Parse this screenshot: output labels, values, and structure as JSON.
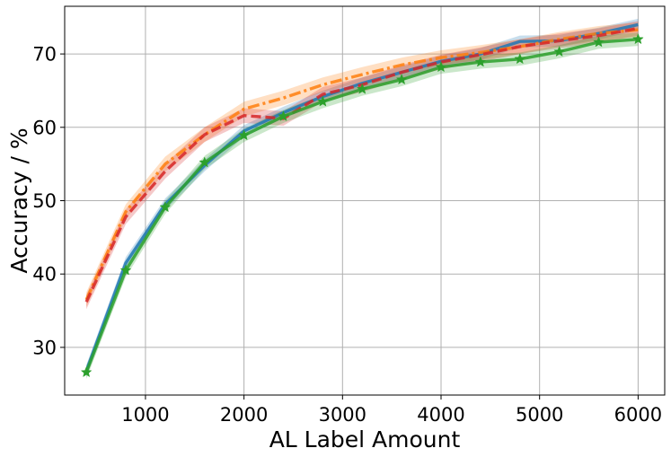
{
  "chart_data": {
    "type": "line",
    "title": "",
    "xlabel": "AL Label Amount",
    "ylabel": "Accuracy / %",
    "xlim": [
      180,
      6270
    ],
    "ylim": [
      23.5,
      76.5
    ],
    "xticks": [
      1000,
      2000,
      3000,
      4000,
      5000,
      6000
    ],
    "yticks": [
      30,
      40,
      50,
      60,
      70
    ],
    "grid": true,
    "legend": "none",
    "series": [
      {
        "color": "#1f77b4",
        "style": "solid",
        "marker": "none",
        "x": [
          400,
          800,
          1200,
          1600,
          2000,
          2400,
          2800,
          3200,
          3600,
          4000,
          4400,
          4800,
          5200,
          5600,
          6000
        ],
        "values": [
          26.8,
          41.5,
          49.5,
          54.8,
          59.5,
          62.0,
          64.2,
          66.0,
          67.5,
          69.0,
          70.0,
          71.7,
          71.8,
          72.8,
          74.0
        ],
        "band": 0.8
      },
      {
        "color": "#ff7f0e",
        "style": "dashdot",
        "marker": "none",
        "x": [
          400,
          800,
          1200,
          1600,
          2000,
          2400,
          2800,
          3200,
          3600,
          4000,
          4400,
          4800,
          5200,
          5600,
          6000
        ],
        "values": [
          36.5,
          48.5,
          55.0,
          59.0,
          62.5,
          64.0,
          65.8,
          67.2,
          68.5,
          69.5,
          70.2,
          71.0,
          72.0,
          72.8,
          73.3
        ],
        "band": 1.0
      },
      {
        "color": "#d62728",
        "style": "dashed",
        "marker": "none",
        "x": [
          400,
          800,
          1200,
          1600,
          2000,
          2400,
          2800,
          3200,
          3600,
          4000,
          4400,
          4800,
          5200,
          5600,
          6000
        ],
        "values": [
          36.2,
          47.8,
          54.0,
          59.0,
          61.6,
          61.2,
          64.5,
          65.8,
          67.5,
          68.9,
          69.9,
          71.0,
          71.8,
          72.5,
          73.5
        ],
        "band": 1.0
      },
      {
        "color": "#2ca02c",
        "style": "solid",
        "marker": "star",
        "x": [
          400,
          800,
          1200,
          1600,
          2000,
          2400,
          2800,
          3200,
          3600,
          4000,
          4400,
          4800,
          5200,
          5600,
          6000
        ],
        "values": [
          26.6,
          40.5,
          49.1,
          55.2,
          58.9,
          61.5,
          63.5,
          65.2,
          66.5,
          68.2,
          68.9,
          69.3,
          70.3,
          71.6,
          72.0
        ],
        "band": 0.9
      }
    ]
  }
}
